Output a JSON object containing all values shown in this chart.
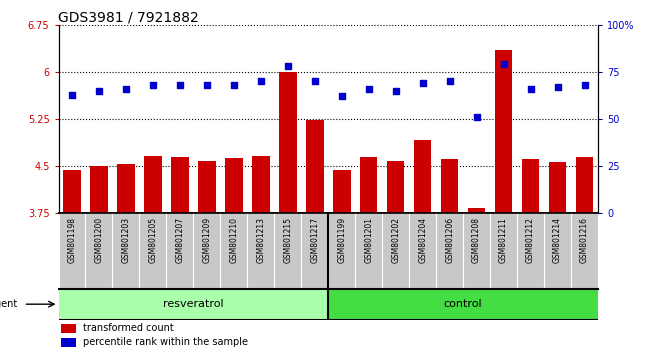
{
  "title": "GDS3981 / 7921882",
  "samples": [
    "GSM801198",
    "GSM801200",
    "GSM801203",
    "GSM801205",
    "GSM801207",
    "GSM801209",
    "GSM801210",
    "GSM801213",
    "GSM801215",
    "GSM801217",
    "GSM801199",
    "GSM801201",
    "GSM801202",
    "GSM801204",
    "GSM801206",
    "GSM801208",
    "GSM801211",
    "GSM801212",
    "GSM801214",
    "GSM801216"
  ],
  "bar_values": [
    4.44,
    4.5,
    4.53,
    4.66,
    4.64,
    4.58,
    4.63,
    4.67,
    6.0,
    5.23,
    4.44,
    4.64,
    4.58,
    4.91,
    4.62,
    3.84,
    6.35,
    4.62,
    4.57,
    4.65
  ],
  "dot_values": [
    63,
    65,
    66,
    68,
    68,
    68,
    68,
    70,
    78,
    70,
    62,
    66,
    65,
    69,
    70,
    51,
    79,
    66,
    67,
    68
  ],
  "bar_color": "#cc0000",
  "dot_color": "#0000cc",
  "ymin": 3.75,
  "ymax": 6.75,
  "ytick_vals": [
    3.75,
    4.5,
    5.25,
    6.0,
    6.75
  ],
  "ytick_labels": [
    "3.75",
    "4.5",
    "5.25",
    "6",
    "6.75"
  ],
  "y2min": 0,
  "y2max": 100,
  "y2ticks": [
    0,
    25,
    50,
    75,
    100
  ],
  "y2ticklabels": [
    "0",
    "25",
    "50",
    "75",
    "100%"
  ],
  "group1_label": "resveratrol",
  "group2_label": "control",
  "group1_count": 10,
  "group2_count": 10,
  "agent_label": "agent",
  "legend1": "transformed count",
  "legend2": "percentile rank within the sample",
  "bg_plot": "#ffffff",
  "bg_xtick": "#c8c8c8",
  "bg_label_resveratrol": "#aaffaa",
  "bg_label_control": "#44dd44",
  "title_fontsize": 10,
  "tick_fontsize": 7,
  "label_fontsize": 8,
  "sample_fontsize": 5.5
}
